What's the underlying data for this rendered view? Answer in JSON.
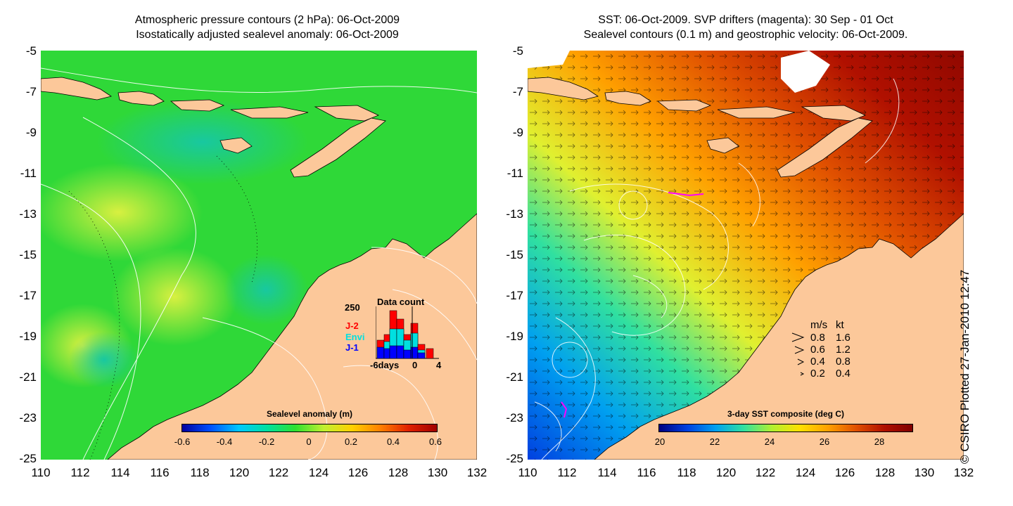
{
  "left_panel": {
    "title_line1": "Atmospheric pressure contours (2 hPa): 06-Oct-2009",
    "title_line2": "Isostatically adjusted sealevel anomaly: 06-Oct-2009",
    "colorbar_title": "Sealevel anomaly (m)",
    "colorbar_labels": [
      "-0.6",
      "-0.4",
      "-0.2",
      "0",
      "0.2",
      "0.4",
      "0.6"
    ],
    "colorbar_colors": [
      "#0000a0",
      "#0050ff",
      "#00c8ff",
      "#00e0a0",
      "#30e030",
      "#c0f030",
      "#ffd000",
      "#ff8000",
      "#e02000",
      "#a00000"
    ],
    "data_count": {
      "title": "Data count",
      "y_max_label": "250",
      "x_labels": [
        "-6days",
        "0",
        "4"
      ],
      "series_labels": [
        "J-2",
        "Envi",
        "J-1"
      ],
      "series_colors": [
        "#ff0000",
        "#00e0e0",
        "#0000ff"
      ]
    }
  },
  "right_panel": {
    "title_line1": "SST: 06-Oct-2009. SVP drifters (magenta): 30 Sep - 01 Oct",
    "title_line2": "Sealevel contours (0.1 m) and geostrophic velocity: 06-Oct-2009.",
    "colorbar_title": "3-day SST composite (deg C)",
    "colorbar_labels": [
      "20",
      "22",
      "24",
      "26",
      "28"
    ],
    "colorbar_colors": [
      "#000080",
      "#0040e0",
      "#00a0f0",
      "#30e0a0",
      "#b0f030",
      "#ffe000",
      "#ffa000",
      "#e05000",
      "#b01000",
      "#800000"
    ],
    "velocity_legend": {
      "header_ms": "m/s",
      "header_kt": "kt",
      "rows": [
        {
          "ms": "0.8",
          "kt": "1.6"
        },
        {
          "ms": "0.6",
          "kt": "1.2"
        },
        {
          "ms": "0.4",
          "kt": "0.8"
        },
        {
          "ms": "0.2",
          "kt": "0.4"
        }
      ]
    }
  },
  "axes": {
    "y_labels": [
      "-5",
      "-7",
      "-9",
      "-11",
      "-13",
      "-15",
      "-17",
      "-19",
      "-21",
      "-23",
      "-25"
    ],
    "x_labels": [
      "110",
      "112",
      "114",
      "116",
      "118",
      "120",
      "122",
      "124",
      "126",
      "128",
      "130",
      "132"
    ]
  },
  "colors": {
    "land": "#fcc89a",
    "ocean_left": "#2fd838",
    "ocean_right_warm": "#b01800",
    "contour": "#ffffff"
  },
  "credit": "© CSIRO Plotted 27-Jan-2010 12:47"
}
